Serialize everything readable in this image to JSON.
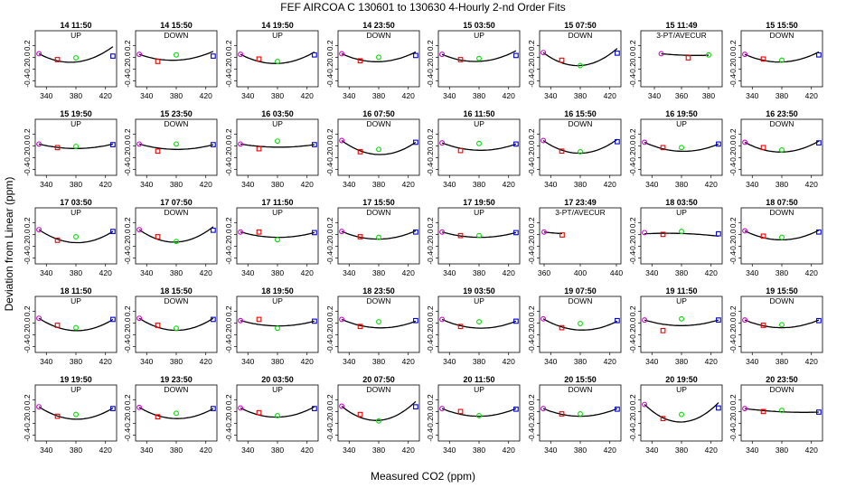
{
  "title": "FEF   AIRCOA C   130601 to 130630   4-Hourly 2-nd Order Fits",
  "xlabel": "Measured CO2 (ppm)",
  "ylabel": "Deviation from Linear (ppm)",
  "colors": {
    "curve": "#000000",
    "p1": "#cc00cc",
    "p2": "#ee0000",
    "p3": "#00dd00",
    "p4": "#0000cc"
  },
  "chart_data": {
    "type": "scatter",
    "ylim": [
      -0.5,
      0.45
    ],
    "yticks": [
      -0.4,
      -0.2,
      0,
      0.2
    ],
    "grid": false,
    "panels": [
      {
        "label": "14 11:50",
        "mode": "UP",
        "x": [
          330,
          355,
          380,
          430
        ],
        "y": [
          0.06,
          -0.04,
          -0.01,
          0.02
        ],
        "fit": [
          0.06,
          -0.0068,
          8e-05
        ]
      },
      {
        "label": "14 15:50",
        "mode": "DOWN",
        "x": [
          330,
          355,
          380,
          430
        ],
        "y": [
          0.05,
          -0.07,
          0.04,
          0.02
        ],
        "fit": [
          0.05,
          -0.0045,
          5e-05
        ]
      },
      {
        "label": "14 19:50",
        "mode": "UP",
        "x": [
          330,
          355,
          380,
          430
        ],
        "y": [
          0.05,
          -0.03,
          -0.07,
          0.04
        ],
        "fit": [
          0.05,
          -0.0066,
          7e-05
        ]
      },
      {
        "label": "14 23:50",
        "mode": "DOWN",
        "x": [
          330,
          355,
          380,
          430
        ],
        "y": [
          0.06,
          -0.06,
          0.0,
          0.03
        ],
        "fit": [
          0.06,
          -0.0057,
          6e-05
        ]
      },
      {
        "label": "15 03:50",
        "mode": "UP",
        "x": [
          330,
          355,
          380,
          430
        ],
        "y": [
          0.05,
          -0.04,
          -0.02,
          0.03
        ],
        "fit": [
          0.05,
          -0.0054,
          6e-05
        ]
      },
      {
        "label": "15 07:50",
        "mode": "DOWN",
        "x": [
          330,
          355,
          380,
          430
        ],
        "y": [
          0.08,
          -0.05,
          -0.14,
          0.07
        ],
        "fit": [
          0.08,
          -0.0095,
          0.000102
        ]
      },
      {
        "label": "15 11:49",
        "mode": "3-PT/AVECUR",
        "x": [
          345,
          365,
          380
        ],
        "y": [
          0.06,
          -0.01,
          0.04
        ],
        "fit": [
          0.06,
          -0.0022,
          4.2e-05
        ]
      },
      {
        "label": "15 15:50",
        "mode": "DOWN",
        "x": [
          330,
          355,
          380,
          430
        ],
        "y": [
          0.05,
          -0.03,
          -0.05,
          0.04
        ],
        "fit": [
          0.05,
          -0.0056,
          6e-05
        ]
      },
      {
        "label": "15 19:50",
        "mode": "UP",
        "x": [
          330,
          355,
          380,
          430
        ],
        "y": [
          0.03,
          -0.03,
          -0.01,
          0.02
        ],
        "fit": [
          0.03,
          -0.003,
          3e-05
        ]
      },
      {
        "label": "15 23:50",
        "mode": "DOWN",
        "x": [
          330,
          355,
          380,
          430
        ],
        "y": [
          0.03,
          -0.09,
          0.03,
          0.02
        ],
        "fit": [
          0.03,
          -0.0035,
          3.4e-05
        ]
      },
      {
        "label": "16 03:50",
        "mode": "UP",
        "x": [
          330,
          355,
          380,
          430
        ],
        "y": [
          0.03,
          -0.05,
          0.08,
          0.02
        ],
        "fit": [
          0.03,
          -0.002,
          1.9e-05
        ]
      },
      {
        "label": "16 07:50",
        "mode": "DOWN",
        "x": [
          330,
          355,
          380,
          430
        ],
        "y": [
          0.09,
          -0.1,
          -0.06,
          0.06
        ],
        "fit": [
          0.09,
          -0.0092,
          8.9e-05
        ]
      },
      {
        "label": "16 11:50",
        "mode": "UP",
        "x": [
          330,
          355,
          380,
          430
        ],
        "y": [
          0.05,
          -0.08,
          0.04,
          0.03
        ],
        "fit": [
          0.05,
          -0.0048,
          4.6e-05
        ]
      },
      {
        "label": "16 15:50",
        "mode": "DOWN",
        "x": [
          330,
          355,
          380,
          430
        ],
        "y": [
          0.09,
          -0.09,
          -0.1,
          0.07
        ],
        "fit": [
          0.09,
          -0.0088,
          9e-05
        ]
      },
      {
        "label": "16 19:50",
        "mode": "UP",
        "x": [
          330,
          355,
          380,
          430
        ],
        "y": [
          0.06,
          -0.03,
          -0.03,
          0.03
        ],
        "fit": [
          0.06,
          -0.0058,
          5.5e-05
        ]
      },
      {
        "label": "16 23:50",
        "mode": "DOWN",
        "x": [
          330,
          355,
          380,
          430
        ],
        "y": [
          0.06,
          -0.03,
          -0.07,
          0.05
        ],
        "fit": [
          0.06,
          -0.0068,
          7e-05
        ]
      },
      {
        "label": "17 03:50",
        "mode": "UP",
        "x": [
          330,
          355,
          380,
          430
        ],
        "y": [
          0.08,
          -0.1,
          -0.04,
          0.05
        ],
        "fit": [
          0.08,
          -0.0085,
          8.2e-05
        ]
      },
      {
        "label": "17 07:50",
        "mode": "DOWN",
        "x": [
          330,
          355,
          380,
          430
        ],
        "y": [
          0.08,
          -0.04,
          -0.12,
          0.07
        ],
        "fit": [
          0.08,
          -0.0089,
          9.4e-05
        ]
      },
      {
        "label": "17 11:50",
        "mode": "UP",
        "x": [
          330,
          355,
          380,
          430
        ],
        "y": [
          0.04,
          0.04,
          -0.09,
          0.03
        ],
        "fit": [
          0.04,
          -0.0035,
          3.4e-05
        ]
      },
      {
        "label": "17 15:50",
        "mode": "DOWN",
        "x": [
          330,
          355,
          380,
          430
        ],
        "y": [
          0.05,
          -0.04,
          -0.05,
          0.04
        ],
        "fit": [
          0.05,
          -0.0053,
          5.4e-05
        ]
      },
      {
        "label": "17 19:50",
        "mode": "UP",
        "x": [
          330,
          355,
          380,
          430
        ],
        "y": [
          0.04,
          -0.02,
          -0.02,
          0.03
        ],
        "fit": [
          0.04,
          -0.0035,
          3.4e-05
        ]
      },
      {
        "label": "17 23:49",
        "mode": "3-PT/AVECUR",
        "x": [
          360,
          380
        ],
        "y": [
          0.04,
          -0.01
        ],
        "fit": [
          0.04,
          -0.0018,
          2.2e-05
        ]
      },
      {
        "label": "18 03:50",
        "mode": "UP",
        "x": [
          330,
          355,
          380,
          430
        ],
        "y": [
          0.03,
          0.0,
          0.05,
          0.01
        ],
        "fit": [
          0.01,
          0.0006,
          -1e-05
        ]
      },
      {
        "label": "18 07:50",
        "mode": "DOWN",
        "x": [
          330,
          355,
          380,
          430
        ],
        "y": [
          0.06,
          -0.03,
          -0.05,
          0.04
        ],
        "fit": [
          0.06,
          -0.0062,
          6.3e-05
        ]
      },
      {
        "label": "18 11:50",
        "mode": "UP",
        "x": [
          330,
          355,
          380,
          430
        ],
        "y": [
          0.08,
          -0.04,
          -0.08,
          0.06
        ],
        "fit": [
          0.08,
          -0.0082,
          8e-05
        ]
      },
      {
        "label": "18 15:50",
        "mode": "DOWN",
        "x": [
          330,
          355,
          380,
          430
        ],
        "y": [
          0.08,
          -0.04,
          -0.09,
          0.06
        ],
        "fit": [
          0.08,
          -0.0082,
          8.2e-05
        ]
      },
      {
        "label": "18 19:50",
        "mode": "UP",
        "x": [
          330,
          355,
          380,
          430
        ],
        "y": [
          0.04,
          0.06,
          -0.09,
          0.03
        ],
        "fit": [
          0.04,
          -0.0035,
          3.4e-05
        ]
      },
      {
        "label": "18 23:50",
        "mode": "DOWN",
        "x": [
          330,
          355,
          380,
          430
        ],
        "y": [
          0.06,
          -0.06,
          0.02,
          0.04
        ],
        "fit": [
          0.06,
          -0.0054,
          5.1e-05
        ]
      },
      {
        "label": "19 03:50",
        "mode": "UP",
        "x": [
          330,
          355,
          380,
          430
        ],
        "y": [
          0.06,
          -0.06,
          0.02,
          0.03
        ],
        "fit": [
          0.06,
          -0.0056,
          5.3e-05
        ]
      },
      {
        "label": "19 07:50",
        "mode": "DOWN",
        "x": [
          330,
          355,
          380,
          430
        ],
        "y": [
          0.07,
          -0.08,
          -0.01,
          0.04
        ],
        "fit": [
          0.07,
          -0.0072,
          6.8e-05
        ]
      },
      {
        "label": "19 11:50",
        "mode": "UP",
        "x": [
          330,
          355,
          380,
          430
        ],
        "y": [
          0.05,
          -0.13,
          0.07,
          0.05
        ],
        "fit": [
          0.05,
          -0.0038,
          3.8e-05
        ]
      },
      {
        "label": "19 15:50",
        "mode": "DOWN",
        "x": [
          330,
          355,
          380,
          430
        ],
        "y": [
          0.05,
          -0.04,
          -0.03,
          0.04
        ],
        "fit": [
          0.05,
          -0.0052,
          5.2e-05
        ]
      },
      {
        "label": "19 19:50",
        "mode": "UP",
        "x": [
          330,
          355,
          380,
          430
        ],
        "y": [
          0.08,
          -0.08,
          -0.05,
          0.05
        ],
        "fit": [
          0.08,
          -0.0082,
          8e-05
        ]
      },
      {
        "label": "19 23:50",
        "mode": "DOWN",
        "x": [
          330,
          355,
          380,
          430
        ],
        "y": [
          0.07,
          -0.09,
          -0.03,
          0.05
        ],
        "fit": [
          0.07,
          -0.0074,
          7.2e-05
        ]
      },
      {
        "label": "20 03:50",
        "mode": "UP",
        "x": [
          330,
          355,
          380,
          430
        ],
        "y": [
          0.06,
          -0.02,
          -0.07,
          0.05
        ],
        "fit": [
          0.06,
          -0.0064,
          6.6e-05
        ]
      },
      {
        "label": "20 07:50",
        "mode": "DOWN",
        "x": [
          330,
          355,
          380,
          430
        ],
        "y": [
          0.09,
          -0.05,
          -0.16,
          0.08
        ],
        "fit": [
          0.09,
          -0.0104,
          0.000112
        ]
      },
      {
        "label": "20 11:50",
        "mode": "UP",
        "x": [
          330,
          355,
          380,
          430
        ],
        "y": [
          0.05,
          0.0,
          -0.07,
          0.04
        ],
        "fit": [
          0.05,
          -0.0052,
          5.2e-05
        ]
      },
      {
        "label": "20 15:50",
        "mode": "DOWN",
        "x": [
          330,
          355,
          380,
          430
        ],
        "y": [
          0.05,
          -0.04,
          -0.04,
          0.04
        ],
        "fit": [
          0.05,
          -0.0052,
          5.2e-05
        ]
      },
      {
        "label": "20 19:50",
        "mode": "UP",
        "x": [
          330,
          355,
          380,
          430
        ],
        "y": [
          0.12,
          -0.12,
          -0.05,
          0.06
        ],
        "fit": [
          0.12,
          -0.0122,
          0.000125
        ]
      },
      {
        "label": "20 23:50",
        "mode": "DOWN",
        "x": [
          330,
          355,
          380,
          430
        ],
        "y": [
          0.05,
          0.0,
          0.02,
          -0.01
        ],
        "fit": [
          0.05,
          -0.0016,
          1e-05
        ]
      }
    ]
  }
}
